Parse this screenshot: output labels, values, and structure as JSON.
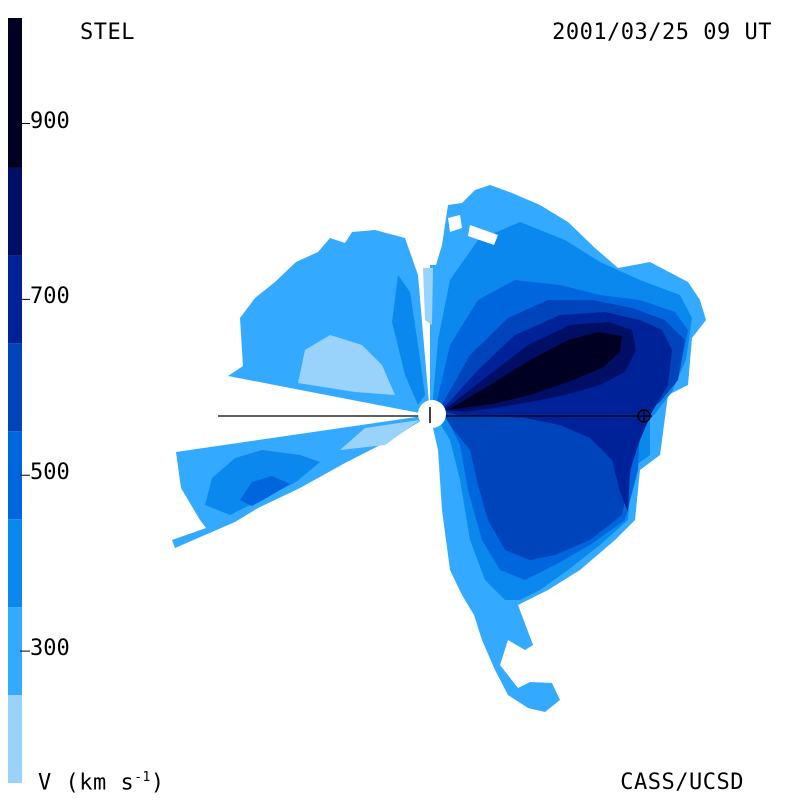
{
  "header": {
    "left": "STEL",
    "right": "2001/03/25 09 UT"
  },
  "footer": {
    "left_prefix": "V (km s",
    "left_sup": "-1",
    "left_suffix": ")",
    "right": "CASS/UCSD"
  },
  "colors": {
    "ring_1": "#99d3fb",
    "ring_2": "#33aaff",
    "ring_3": "#0a88ee",
    "ring_4": "#0066dd",
    "ring_5": "#0044bb",
    "ring_6": "#002299",
    "ring_7": "#000e66",
    "ring_8": "#000022",
    "line": "#000000",
    "sun": "#ffffff"
  },
  "chart_data": {
    "type": "heatmap",
    "title": "",
    "xlabel": "",
    "ylabel": "V (km s-1)",
    "colorbar": {
      "ticks": [
        300,
        500,
        700,
        900
      ],
      "range": [
        150,
        1020
      ],
      "levels": [
        {
          "from": 150,
          "to": 250,
          "color": "#99d3fb"
        },
        {
          "from": 250,
          "to": 350,
          "color": "#33aaff"
        },
        {
          "from": 350,
          "to": 450,
          "color": "#0a88ee"
        },
        {
          "from": 450,
          "to": 550,
          "color": "#0066dd"
        },
        {
          "from": 550,
          "to": 650,
          "color": "#0044bb"
        },
        {
          "from": 650,
          "to": 750,
          "color": "#002299"
        },
        {
          "from": 750,
          "to": 850,
          "color": "#000e66"
        },
        {
          "from": 850,
          "to": 1020,
          "color": "#000022"
        }
      ]
    }
  }
}
